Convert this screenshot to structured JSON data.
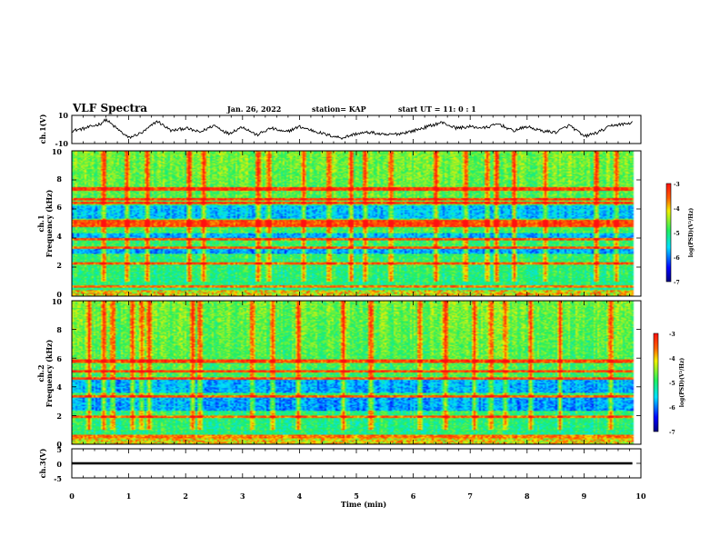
{
  "header": {
    "title": "VLF Spectra",
    "date": "Jan. 26, 2022",
    "station": "station= KAP",
    "start": "start  UT =   11: 0  : 1"
  },
  "colorbar": {
    "label": "log(PSD)(V²/Hz)",
    "ticks": [
      "-3",
      "-4",
      "-5",
      "-6",
      "-7"
    ],
    "range": [
      -7,
      -3
    ]
  },
  "chart_data": [
    {
      "type": "line",
      "ylabel": "ch.1(V)",
      "ylim": [
        -10,
        10
      ],
      "yticks": [
        "10",
        "-10"
      ],
      "xlim": [
        0,
        10
      ],
      "grid": false,
      "series": [
        {
          "x": [
            0,
            0.25,
            0.5,
            0.6,
            0.75,
            1.0,
            1.25,
            1.5,
            1.75,
            2.0,
            2.25,
            2.5,
            2.75,
            3.0,
            3.25,
            3.5,
            3.75,
            4.0,
            4.25,
            4.5,
            4.75,
            5.0,
            5.25,
            5.5,
            5.75,
            6.0,
            6.25,
            6.5,
            6.75,
            7.0,
            7.25,
            7.5,
            7.75,
            8.0,
            8.25,
            8.5,
            8.75,
            9.0,
            9.25,
            9.5,
            9.75,
            9.85
          ],
          "values": [
            -1,
            1,
            4,
            7,
            2,
            -6,
            -2,
            6,
            -1,
            1,
            -2,
            3,
            -3,
            2,
            -4,
            1,
            -2,
            2,
            -1,
            -4,
            -6,
            -3,
            -2,
            -4,
            -3,
            -1,
            2,
            5,
            1,
            2,
            1,
            4,
            -1,
            2,
            -1,
            -2,
            3,
            -5,
            -2,
            3,
            4,
            5
          ]
        }
      ]
    },
    {
      "type": "heatmap",
      "ylabel": "ch.1\nFrequency (kHz)",
      "ylim": [
        0,
        10
      ],
      "yticks": [
        "0",
        "2",
        "4",
        "6",
        "8",
        "10"
      ],
      "xlim": [
        0,
        10
      ],
      "z_range": [
        -7,
        -3
      ],
      "emission_bands_khz": [
        0.3,
        0.6,
        2.2,
        3.3,
        3.9,
        4.8,
        5.0,
        5.2,
        6.4,
        6.7,
        7.4
      ],
      "quiet_bands_khz": [
        [
          2.9,
          3.2
        ],
        [
          4.0,
          4.3
        ],
        [
          5.3,
          6.0
        ],
        [
          6.0,
          6.3
        ]
      ],
      "burst_times_min": [
        0.55,
        0.95,
        1.3,
        2.05,
        2.3,
        3.25,
        3.45,
        4.05,
        4.5,
        4.9,
        5.15,
        5.6,
        6.4,
        6.9,
        7.3,
        7.45,
        7.75,
        8.3,
        9.2,
        9.55
      ]
    },
    {
      "type": "heatmap",
      "ylabel": "ch.2\nFrequency (kHz)",
      "ylim": [
        0,
        10
      ],
      "yticks": [
        "0",
        "2",
        "4",
        "6",
        "8",
        "10"
      ],
      "xlim": [
        0,
        10
      ],
      "z_range": [
        -7,
        -3
      ],
      "emission_bands_khz": [
        0.3,
        0.5,
        1.9,
        3.3,
        4.6,
        5.1,
        5.8
      ],
      "quiet_bands_khz": [
        [
          2.3,
          3.2
        ],
        [
          3.6,
          4.5
        ]
      ],
      "burst_times_min": [
        0.3,
        0.55,
        0.7,
        1.05,
        1.2,
        1.35,
        2.1,
        2.25,
        3.15,
        3.5,
        3.95,
        4.75,
        5.25,
        6.1,
        6.55,
        7.05,
        7.35,
        7.6,
        8.05,
        8.55,
        9.45
      ]
    },
    {
      "type": "line",
      "ylabel": "ch.3(V)",
      "ylim": [
        -5,
        5
      ],
      "yticks": [
        "5",
        "0",
        "-5"
      ],
      "xlim": [
        0,
        10
      ],
      "xlabel": "Time  (min)",
      "xticks": [
        "0",
        "1",
        "2",
        "3",
        "4",
        "5",
        "6",
        "7",
        "8",
        "9",
        "10"
      ],
      "grid": false,
      "series": [
        {
          "x": [
            0,
            9.85
          ],
          "values": [
            0,
            0
          ],
          "band": [
            -0.4,
            0.4
          ]
        }
      ]
    }
  ]
}
